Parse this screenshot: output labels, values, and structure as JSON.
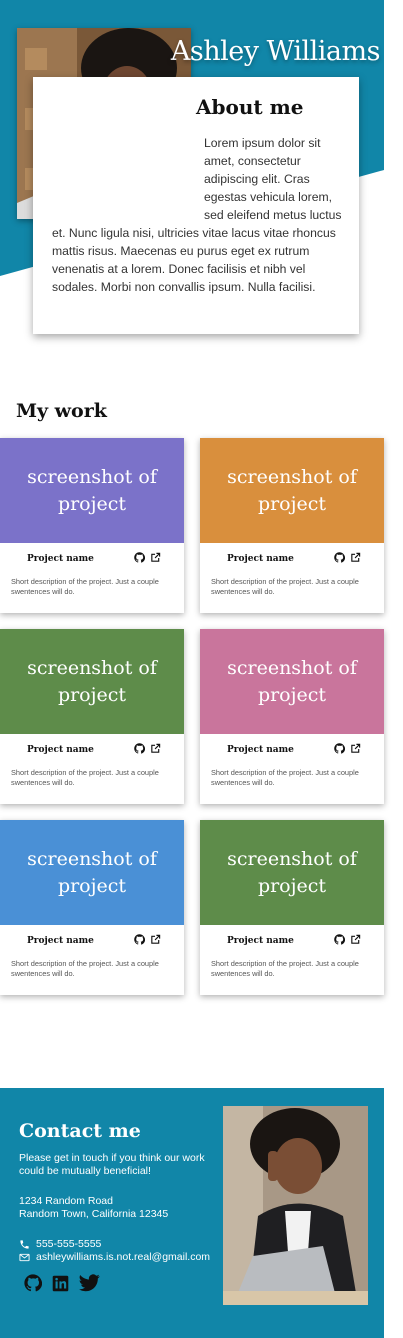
{
  "hero": {
    "name": "Ashley Williams",
    "bg_color": "#1186a8",
    "photo_alt": "portrait-photo"
  },
  "about": {
    "title": "About me",
    "text": "Lorem ipsum dolor sit amet, consectetur adipiscing elit. Cras egestas vehicula lorem, sed eleifend metus luctus et. Nunc ligula nisi, ultricies vitae lacus vitae rhoncus mattis risus. Maecenas eu purus eget ex rutrum venenatis at a lorem. Donec facilisis et nibh vel sodales. Morbi non convallis ipsum. Nulla facilisi."
  },
  "work": {
    "title": "My work",
    "projects": [
      {
        "shot": "screenshot of project",
        "name": "Project name",
        "desc": "Short description of the project. Just a couple swentences will do.",
        "color": "#7b72c9"
      },
      {
        "shot": "screenshot of project",
        "name": "Project name",
        "desc": "Short description of the project. Just a couple swentences will do.",
        "color": "#d98f3d"
      },
      {
        "shot": "screenshot of project",
        "name": "Project name",
        "desc": "Short description of the project. Just a couple swentences will do.",
        "color": "#5e8c4a"
      },
      {
        "shot": "screenshot of project",
        "name": "Project name",
        "desc": "Short description of the project. Just a couple swentences will do.",
        "color": "#c9759c"
      },
      {
        "shot": "screenshot of project",
        "name": "Project name",
        "desc": "Short description of the project. Just a couple swentences will do.",
        "color": "#4a90d6"
      },
      {
        "shot": "screenshot of project",
        "name": "Project name",
        "desc": "Short description of the project. Just a couple swentences will do.",
        "color": "#5e8c4a"
      }
    ],
    "icons": [
      "github-icon",
      "external-link-icon"
    ]
  },
  "contact": {
    "title": "Contact me",
    "text": "Please get in touch if you think our work could be mutually beneficial!",
    "address_line1": "1234 Random Road",
    "address_line2": "Random Town, California 12345",
    "phone": "555-555-5555",
    "email": "ashleywilliams.is.not.real@gmail.com",
    "social_icons": [
      "github-icon",
      "linkedin-icon",
      "twitter-icon"
    ]
  }
}
